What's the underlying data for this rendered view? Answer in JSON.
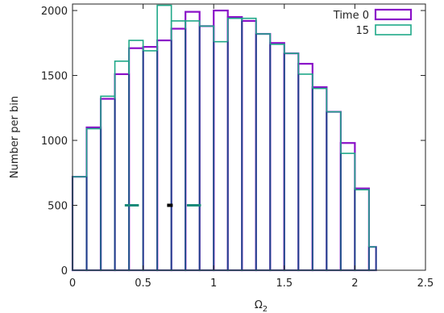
{
  "chart_data": {
    "type": "histogram",
    "xlabel_main": "Ω",
    "xlabel_sub": "2",
    "ylabel": "Number per bin",
    "xlim": [
      0,
      2.5
    ],
    "ylim": [
      0,
      2050
    ],
    "x_ticks": [
      {
        "value": 0,
        "label": "0"
      },
      {
        "value": 0.5,
        "label": "0.5"
      },
      {
        "value": 1,
        "label": "1"
      },
      {
        "value": 1.5,
        "label": "1.5"
      },
      {
        "value": 2,
        "label": "2"
      },
      {
        "value": 2.5,
        "label": "2.5"
      }
    ],
    "y_ticks": [
      {
        "value": 0,
        "label": "0"
      },
      {
        "value": 500,
        "label": "500"
      },
      {
        "value": 1000,
        "label": "1000"
      },
      {
        "value": 1500,
        "label": "1500"
      },
      {
        "value": 2000,
        "label": "2000"
      }
    ],
    "bin_edges": [
      0,
      0.1,
      0.2,
      0.3,
      0.4,
      0.5,
      0.6,
      0.7,
      0.8,
      0.9,
      1.0,
      1.1,
      1.2,
      1.3,
      1.4,
      1.5,
      1.6,
      1.7,
      1.8,
      1.9,
      2.0,
      2.1,
      2.15
    ],
    "legend_position": "top-right",
    "series": [
      {
        "name": "Time 0",
        "color": "#8a10c8",
        "values": [
          720,
          1100,
          1320,
          1510,
          1710,
          1720,
          1770,
          1860,
          1990,
          1880,
          2000,
          1950,
          1920,
          1820,
          1750,
          1670,
          1590,
          1410,
          1220,
          980,
          630,
          180
        ]
      },
      {
        "name": "15",
        "color": "#1fa888",
        "values": [
          720,
          1090,
          1340,
          1610,
          1770,
          1690,
          2040,
          1920,
          1920,
          1880,
          1760,
          1940,
          1940,
          1820,
          1740,
          1670,
          1510,
          1400,
          1220,
          900,
          620,
          180
        ]
      }
    ],
    "outline_color": "#1e3a8a",
    "markers": [
      {
        "x_from": 0.37,
        "x_to": 0.47,
        "y": 500,
        "color": "#1a8a7a",
        "style": "dash"
      },
      {
        "x_from": 0.67,
        "x_to": 0.71,
        "y": 500,
        "color": "#000000",
        "style": "dot"
      },
      {
        "x_from": 0.81,
        "x_to": 0.91,
        "y": 500,
        "color": "#1a8a7a",
        "style": "dash"
      }
    ]
  }
}
